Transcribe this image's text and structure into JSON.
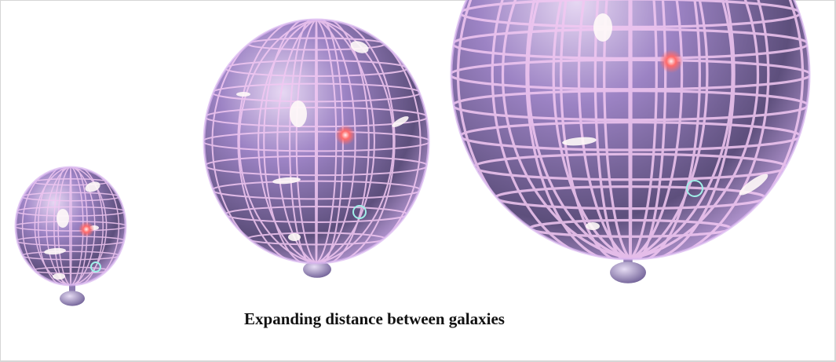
{
  "caption": "Expanding distance between galaxies"
}
